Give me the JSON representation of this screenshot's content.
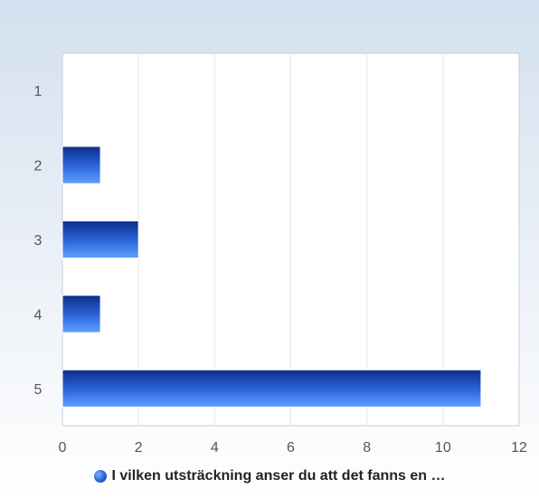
{
  "chart_data": {
    "type": "bar",
    "orientation": "horizontal",
    "categories": [
      "1",
      "2",
      "3",
      "4",
      "5"
    ],
    "series": [
      {
        "name": "I vilken utsträckning anser du att det fanns en …",
        "values": [
          0,
          1,
          2,
          1,
          11
        ]
      }
    ],
    "xlim": [
      0,
      12
    ],
    "x_ticks": [
      0,
      2,
      4,
      6,
      8,
      10,
      12
    ],
    "grid": "vertical",
    "legend_position": "bottom",
    "colors": {
      "bar_dark": "#0d2d8a",
      "bar_mid": "#2a62d6",
      "bar_light": "#5fa0ff",
      "grid": "#e2e6ec",
      "axis": "#c9ced6",
      "plot_bg": "#ffffff"
    }
  }
}
